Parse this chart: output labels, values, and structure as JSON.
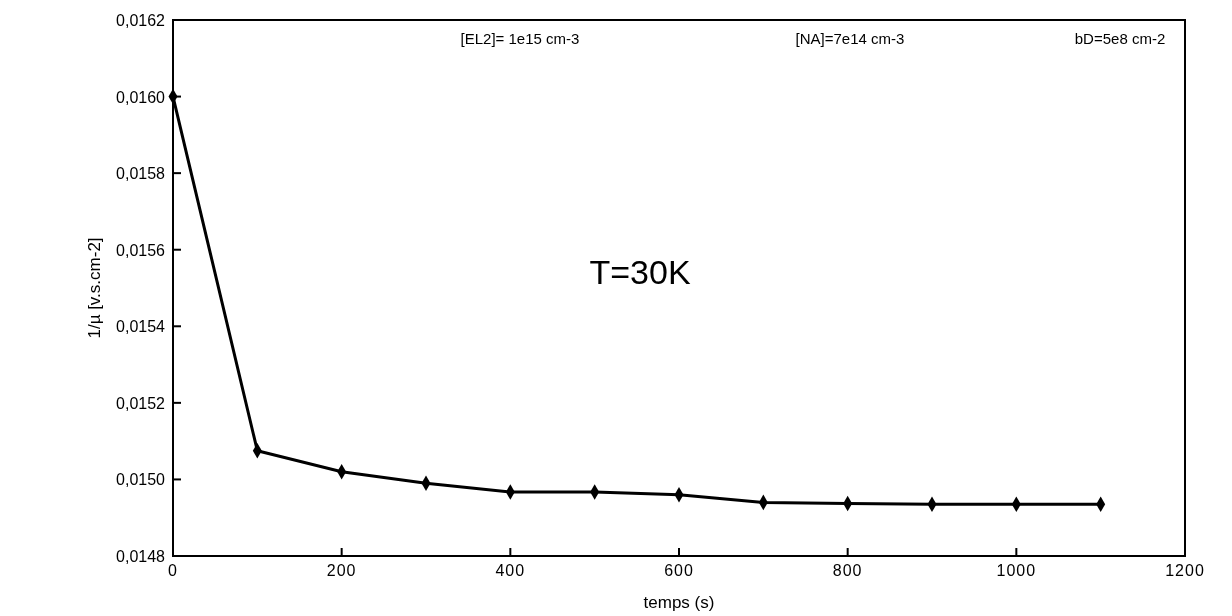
{
  "chart_data": {
    "type": "line",
    "xlabel": "temps (s)",
    "ylabel": "1/µ  [v.s.cm-2]",
    "x": [
      0,
      100,
      200,
      300,
      400,
      500,
      600,
      700,
      800,
      900,
      1000,
      1100
    ],
    "series": [
      {
        "color": "#000000",
        "values": [
          0.016,
          0.015075,
          0.01502,
          0.01499,
          0.014967,
          0.014967,
          0.01496,
          0.01494,
          0.014937,
          0.014935,
          0.014935,
          0.014935
        ]
      }
    ],
    "xlim": [
      0,
      1200
    ],
    "xticks": [
      0,
      200,
      400,
      600,
      800,
      1000,
      1200
    ],
    "ylim": [
      0.0148,
      0.0162
    ],
    "yticks": [
      {
        "value": 0.0148,
        "label": "0,0148"
      },
      {
        "value": 0.015,
        "label": "0,0150"
      },
      {
        "value": 0.0152,
        "label": "0,0152"
      },
      {
        "value": 0.0154,
        "label": "0,0154"
      },
      {
        "value": 0.0156,
        "label": "0,0156"
      },
      {
        "value": 0.0158,
        "label": "0,0158"
      },
      {
        "value": 0.016,
        "label": "0,0160"
      },
      {
        "value": 0.0162,
        "label": "0,0162"
      }
    ],
    "marker": "diamond",
    "line_style": "solid",
    "grid": false,
    "annotations": [
      "[EL2]= 1e15 cm-3",
      "[NA]=7e14 cm-3",
      "bD=5e8 cm-2",
      "T=30K"
    ]
  }
}
